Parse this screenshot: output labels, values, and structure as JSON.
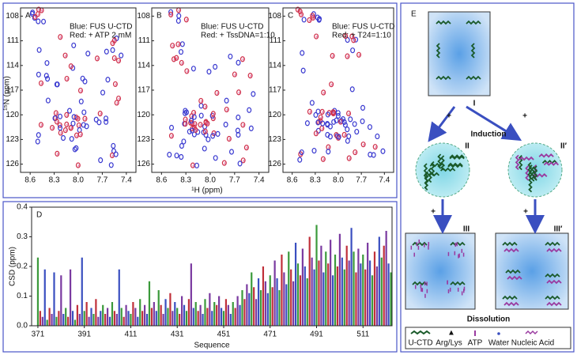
{
  "nmr": {
    "panels": [
      {
        "label": "A",
        "blue": "Blue: FUS U-CTD",
        "red": "Red: + ATP 2 mM"
      },
      {
        "label": "B",
        "blue": "Blue: FUS U-CTD",
        "red": "Red: + TssDNA=1:10"
      },
      {
        "label": "C",
        "blue": "Blue: FUS U-CTD",
        "red": "Red: + T24=1:10"
      }
    ],
    "xlim": [
      8.72,
      7.28
    ],
    "ylim": [
      107,
      127
    ],
    "xticks": [
      8.6,
      8.3,
      {
        "value": 8,
        "label": "8.0"
      },
      7.7,
      7.4
    ],
    "yticks": [
      108,
      111,
      114,
      117,
      120,
      123,
      126
    ],
    "x_label": "¹H (ppm)",
    "y_label": "¹⁵N (ppm)"
  },
  "chart_data": {
    "type": "bar",
    "label": "D",
    "y_label": "CSD (ppm)",
    "x_label": "Sequence",
    "colors": [
      "#3b9a3b",
      "#c0303a",
      "#7a3aa0",
      "#3a4fc0"
    ],
    "xlim": [
      368.3,
      523.5
    ],
    "ylim": [
      0,
      0.4
    ],
    "xticks": [
      371,
      391,
      411,
      431,
      451,
      471,
      491,
      511
    ],
    "yticks": [
      {
        "value": 0,
        "label": "0.0"
      },
      0.1,
      0.2,
      0.3,
      0.4
    ],
    "x": [
      371,
      372,
      373,
      374,
      375,
      376,
      377,
      378,
      379,
      380,
      381,
      382,
      383,
      384,
      385,
      386,
      387,
      388,
      389,
      390,
      391,
      392,
      393,
      394,
      395,
      396,
      397,
      398,
      399,
      400,
      401,
      402,
      403,
      404,
      405,
      406,
      407,
      408,
      409,
      410,
      411,
      412,
      413,
      414,
      415,
      416,
      417,
      418,
      419,
      420,
      421,
      422,
      423,
      424,
      425,
      426,
      427,
      428,
      429,
      430,
      431,
      432,
      433,
      434,
      435,
      436,
      437,
      438,
      439,
      440,
      441,
      442,
      443,
      444,
      445,
      446,
      447,
      448,
      449,
      450,
      451,
      452,
      453,
      454,
      455,
      456,
      457,
      458,
      459,
      460,
      461,
      462,
      463,
      464,
      465,
      466,
      467,
      468,
      469,
      470,
      471,
      472,
      473,
      474,
      475,
      476,
      477,
      478,
      479,
      480,
      481,
      482,
      483,
      484,
      485,
      486,
      487,
      488,
      489,
      490,
      491,
      492,
      493,
      494,
      495,
      496,
      497,
      498,
      499,
      500,
      501,
      502,
      503,
      504,
      505,
      506,
      507,
      508,
      509,
      510,
      511,
      512,
      513,
      514,
      515,
      516,
      517,
      518,
      519,
      520,
      521,
      522,
      523
    ],
    "values": [
      0.23,
      0.05,
      0.03,
      0.19,
      0.02,
      0.06,
      0.04,
      0.18,
      0.03,
      0.05,
      0.17,
      0.04,
      0.06,
      0.03,
      0.19,
      0.05,
      0.02,
      0.07,
      0.04,
      0.23,
      0.05,
      0.08,
      0.03,
      0.06,
      0.04,
      0.09,
      0.03,
      0.05,
      0.07,
      0.04,
      0.06,
      0.03,
      0.08,
      0.05,
      0.04,
      0.19,
      0.06,
      0.03,
      0.07,
      0.05,
      0.04,
      0.08,
      0.06,
      0.03,
      0.09,
      0.05,
      0.07,
      0.04,
      0.15,
      0.06,
      0.08,
      0.05,
      0.12,
      0.07,
      0.04,
      0.09,
      0.06,
      0.11,
      0.05,
      0.08,
      0.06,
      0.04,
      0.1,
      0.07,
      0.05,
      0.09,
      0.21,
      0.06,
      0.08,
      0.05,
      0.07,
      0.04,
      0.09,
      0.06,
      0.11,
      0.05,
      0.08,
      0.07,
      0.1,
      0.06,
      0.05,
      0.09,
      0.07,
      0.04,
      0.08,
      0.06,
      0.1,
      0.07,
      0.12,
      0.09,
      0.14,
      0.11,
      0.18,
      0.13,
      0.09,
      0.16,
      0.12,
      0.2,
      0.15,
      0.11,
      0.17,
      0.13,
      0.22,
      0.16,
      0.12,
      0.24,
      0.18,
      0.14,
      0.25,
      0.19,
      0.15,
      0.28,
      0.21,
      0.17,
      0.26,
      0.2,
      0.16,
      0.3,
      0.23,
      0.19,
      0.34,
      0.22,
      0.27,
      0.18,
      0.25,
      0.21,
      0.29,
      0.17,
      0.24,
      0.2,
      0.31,
      0.23,
      0.19,
      0.27,
      0.22,
      0.33,
      0.25,
      0.18,
      0.26,
      0.21,
      0.24,
      0.19,
      0.28,
      0.22,
      0.17,
      0.25,
      0.2,
      0.3,
      0.23,
      0.27,
      0.32,
      0.21,
      0.18
    ]
  },
  "scheme": {
    "label": "E",
    "stages": [
      "I",
      "II",
      "II′",
      "III",
      "III′"
    ],
    "plus": "+",
    "induction": "Induction",
    "dissolution": "Dissolution",
    "legend": [
      "U-CTD",
      "Arg/Lys",
      "ATP",
      "Water",
      "Nucleic Acid"
    ]
  }
}
